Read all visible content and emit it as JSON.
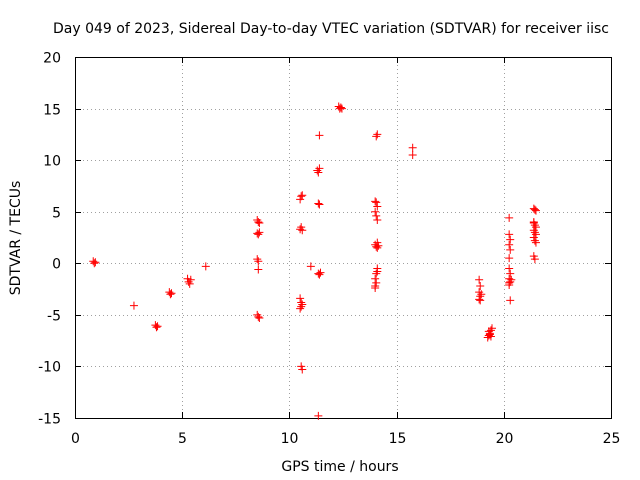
{
  "chart_data": {
    "type": "scatter",
    "title": "Day 049 of 2023, Sidereal Day-to-day VTEC variation (SDTVAR) for receiver iisc",
    "xlabel": "GPS time / hours",
    "ylabel": "SDTVAR / TECUs",
    "xlim": [
      0,
      25
    ],
    "ylim": [
      -15,
      20
    ],
    "xticks": [
      0,
      5,
      10,
      15,
      20,
      25
    ],
    "yticks": [
      -15,
      -10,
      -5,
      0,
      5,
      10,
      15,
      20
    ],
    "xtick_labels": [
      "0",
      "5",
      "10",
      "15",
      "20",
      "25"
    ],
    "ytick_labels": [
      "-15",
      "-10",
      "-5",
      "0",
      "5",
      "10",
      "15",
      "20"
    ],
    "grid": true,
    "marker": "+",
    "color": "#ff0000",
    "series": [
      {
        "name": "SDTVAR",
        "x": [
          0.85,
          0.9,
          0.95,
          2.75,
          3.75,
          3.8,
          3.85,
          4.4,
          4.45,
          4.5,
          5.25,
          5.3,
          5.35,
          5.4,
          6.1,
          8.5,
          8.55,
          8.6,
          8.5,
          8.55,
          8.6,
          8.5,
          8.55,
          8.55,
          8.5,
          8.55,
          8.6,
          10.5,
          10.55,
          10.6,
          10.5,
          10.55,
          10.6,
          10.5,
          10.55,
          10.6,
          10.55,
          10.5,
          10.55,
          10.6,
          11.0,
          11.3,
          11.35,
          11.4,
          11.35,
          11.4,
          11.35,
          11.4,
          11.45,
          11.35,
          12.3,
          12.35,
          12.4,
          12.45,
          14.0,
          14.05,
          14.1,
          14.0,
          14.05,
          14.1,
          14.1,
          14.0,
          14.05,
          14.1,
          14.15,
          14.1,
          14.1,
          14.05,
          14.0,
          14.05,
          14.0,
          14.0,
          14.05,
          14.1,
          15.75,
          15.75,
          18.85,
          18.9,
          18.85,
          18.9,
          18.85,
          18.95,
          18.9,
          19.25,
          19.3,
          19.35,
          19.4,
          19.45,
          19.3,
          19.35,
          19.4,
          20.25,
          20.25,
          20.3,
          20.25,
          20.3,
          20.25,
          20.25,
          20.3,
          20.25,
          20.3,
          20.35,
          20.25,
          20.3,
          20.25,
          21.4,
          21.45,
          21.5,
          21.4,
          21.45,
          21.5,
          21.4,
          21.45,
          21.5,
          21.4,
          21.45,
          21.5,
          21.4,
          21.45,
          21.4,
          11.4
        ],
        "y": [
          0.2,
          0.0,
          0.1,
          -4.1,
          -6.0,
          -6.2,
          -6.1,
          -2.8,
          -3.0,
          -2.9,
          -1.5,
          -1.8,
          -2.0,
          -1.6,
          -0.3,
          4.2,
          4.0,
          3.9,
          2.9,
          2.8,
          3.0,
          0.4,
          0.2,
          -0.6,
          -5.0,
          -5.2,
          -5.3,
          6.2,
          6.5,
          6.6,
          3.3,
          3.5,
          3.2,
          -3.4,
          -3.8,
          -4.0,
          -4.2,
          -4.4,
          -10.0,
          -10.3,
          -0.3,
          9.0,
          8.8,
          9.2,
          5.8,
          5.7,
          -1.0,
          -1.1,
          -0.9,
          -14.8,
          15.2,
          15.0,
          15.1,
          15.0,
          6.0,
          5.9,
          5.5,
          5.0,
          4.6,
          4.2,
          2.0,
          1.8,
          1.6,
          1.5,
          1.7,
          -0.5,
          -0.8,
          -1.0,
          -1.5,
          -1.9,
          -2.2,
          -2.4,
          12.3,
          12.5,
          11.2,
          10.5,
          -1.6,
          -2.2,
          -2.8,
          -3.2,
          -3.5,
          -3.0,
          -3.6,
          -7.2,
          -7.0,
          -6.8,
          -6.5,
          -6.3,
          -6.6,
          -6.9,
          -7.1,
          4.4,
          2.8,
          2.3,
          1.8,
          1.3,
          0.5,
          -0.5,
          -1.0,
          -1.5,
          -1.8,
          -1.6,
          -2.1,
          -3.6,
          -1.9,
          5.3,
          5.2,
          5.1,
          4.0,
          3.7,
          3.5,
          3.2,
          3.0,
          2.8,
          2.5,
          2.2,
          2.0,
          0.7,
          0.4,
          3.9,
          12.4
        ]
      }
    ]
  }
}
